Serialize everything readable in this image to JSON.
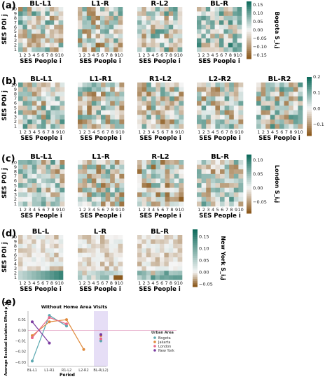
{
  "colors": {
    "neg": "#8c5a1e",
    "mid": "#f5f5f5",
    "pos": "#0f6b5c"
  },
  "heatmap_ticks": [
    "1",
    "2",
    "3",
    "4",
    "5",
    "6",
    "7",
    "8",
    "9",
    "10"
  ],
  "rows": [
    {
      "label": "(a)",
      "ylabel": "SES POI j",
      "xlabel": "SES People i",
      "cb_label": "Bogota S_i,j",
      "titles": [
        "BL-L1",
        "L1-R",
        "R-L2",
        "BL-R"
      ],
      "cb_ticks": [
        "0.15",
        "0.10",
        "0.05",
        "0.00",
        "−0.05",
        "−0.10",
        "−0.15"
      ],
      "cb_vals": [
        0.15,
        0.1,
        0.05,
        0.0,
        -0.05,
        -0.1,
        -0.15
      ],
      "range": [
        -0.17,
        0.17
      ]
    },
    {
      "label": "(b)",
      "ylabel": "SES POI j",
      "xlabel": "SES People i",
      "cb_label": "Jakarta S_i,j",
      "titles": [
        "BL-L1",
        "L1-R1",
        "R1-L2",
        "L2-R2",
        "BL-R2"
      ],
      "cb_ticks": [
        "0.2",
        "0.1",
        "0.0",
        "−0.1"
      ],
      "cb_vals": [
        0.2,
        0.1,
        0.0,
        -0.1
      ],
      "range": [
        -0.17,
        0.2
      ]
    },
    {
      "label": "(c)",
      "ylabel": "SES POI j",
      "xlabel": "SES People i",
      "cb_label": "London S_i,j",
      "titles": [
        "BL-L1",
        "L1-R",
        "R-L2",
        "BL-R"
      ],
      "cb_ticks": [
        "0.10",
        "0.05",
        "0.00",
        "−0.05"
      ],
      "cb_vals": [
        0.1,
        0.05,
        0.0,
        -0.05
      ],
      "range": [
        -0.09,
        0.12
      ]
    },
    {
      "label": "(d)",
      "ylabel": "SES POI j",
      "xlabel": "SES People i",
      "cb_label": "New York S_i,j",
      "titles": [
        "BL-L",
        "L-R",
        "BL-R"
      ],
      "cb_ticks": [
        "0.15",
        "0.10",
        "0.05",
        "0.00",
        "−0.05"
      ],
      "cb_vals": [
        0.15,
        0.1,
        0.05,
        0.0,
        -0.05
      ],
      "range": [
        -0.06,
        0.18
      ]
    }
  ],
  "chart_data": {
    "type": "line",
    "panel_label": "(e)",
    "title": "Without Home Area Visits",
    "ylabel": "Average Residual Isolation Effect μ_si",
    "xlabel": "Period",
    "categories": [
      "BL-L1",
      "L1-R1",
      "R1-L2",
      "L2-R2",
      "BL-R(L2)"
    ],
    "yticks": [
      "0.01",
      "0.00",
      "−0.01",
      "−0.02",
      "−0.03"
    ],
    "ylim": [
      -0.034,
      0.018
    ],
    "legend_title": "Urban Area",
    "series": [
      {
        "name": "Bogota",
        "color": "#5aa8b0",
        "values": [
          -0.029,
          0.014,
          0.004,
          null,
          -0.01
        ]
      },
      {
        "name": "Jakarta",
        "color": "#e08a3c",
        "values": [
          -0.005,
          0.008,
          0.01,
          -0.018,
          -0.005
        ]
      },
      {
        "name": "London",
        "color": "#e86a8a",
        "values": [
          -0.007,
          0.012,
          0.006,
          null,
          -0.008
        ]
      },
      {
        "name": "New York",
        "color": "#7a3aa0",
        "values": [
          0.008,
          -0.012,
          null,
          null,
          -0.004
        ]
      }
    ],
    "highlight_band": "BL-R(L2)",
    "highlight_color": "#e6def6",
    "ref_line_color": "#e4a0c4"
  }
}
